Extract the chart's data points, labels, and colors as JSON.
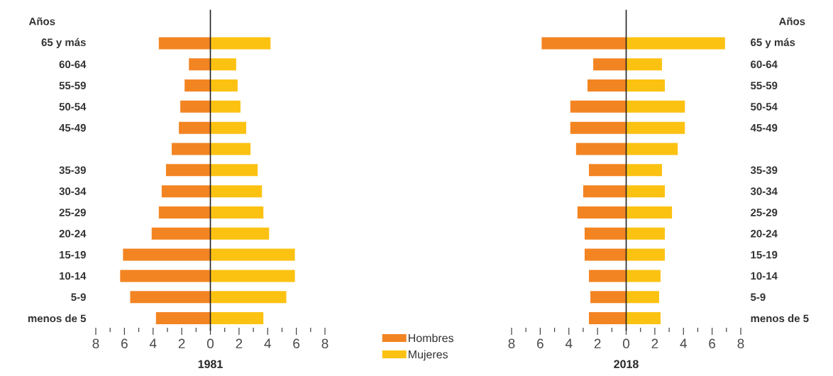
{
  "chart_data": [
    {
      "type": "bar",
      "orientation": "horizontal",
      "stacked": true,
      "title": "1981",
      "ylabel": "Años",
      "legend": "bottom right",
      "categories": [
        "65 y más",
        "60-64",
        "55-59",
        "50-54",
        "45-49",
        null,
        "35-39",
        "30-34",
        "25-29",
        "20-24",
        "15-19",
        "10-14",
        "5-9",
        "menos de 5"
      ],
      "series": [
        {
          "name": "Hombres",
          "color": "#f38422",
          "values": [
            -3.6,
            -1.5,
            -1.8,
            -2.1,
            -2.2,
            -2.7,
            -3.1,
            -3.4,
            -3.6,
            -4.1,
            -6.1,
            -6.3,
            -5.6,
            -3.8
          ]
        },
        {
          "name": "Mujeres",
          "color": "#fcc212",
          "values": [
            4.2,
            1.8,
            1.9,
            2.1,
            2.5,
            2.8,
            3.3,
            3.6,
            3.7,
            4.1,
            5.9,
            5.9,
            5.3,
            3.7
          ]
        }
      ],
      "xlim": [
        -8,
        8
      ],
      "xticks": [
        {
          "value": -8,
          "label": "8"
        },
        {
          "value": -7,
          "label": null
        },
        {
          "value": -6,
          "label": "6"
        },
        {
          "value": -5,
          "label": null
        },
        {
          "value": -4,
          "label": "4"
        },
        {
          "value": -3,
          "label": null
        },
        {
          "value": -2,
          "label": "2"
        },
        {
          "value": -1,
          "label": null
        },
        {
          "value": 0,
          "label": "0"
        },
        {
          "value": 1,
          "label": null
        },
        {
          "value": 2,
          "label": "2"
        },
        {
          "value": 3,
          "label": null
        },
        {
          "value": 4,
          "label": "4"
        },
        {
          "value": 5,
          "label": null
        },
        {
          "value": 6,
          "label": "6"
        },
        {
          "value": 7,
          "label": null
        },
        {
          "value": 8,
          "label": "8"
        }
      ],
      "ref_lines": [
        {
          "axis": "x",
          "value": 0,
          "color": "#231f20"
        }
      ]
    },
    {
      "type": "bar",
      "orientation": "horizontal",
      "stacked": true,
      "title": "2018",
      "ylabel": "Años",
      "categories": [
        "65 y más",
        "60-64",
        "55-59",
        "50-54",
        "45-49",
        null,
        "35-39",
        "30-34",
        "25-29",
        "20-24",
        "15-19",
        "10-14",
        "5-9",
        "menos de 5"
      ],
      "series": [
        {
          "color": "#f38422",
          "values": [
            -5.9,
            -2.3,
            -2.7,
            -3.9,
            -3.9,
            -3.5,
            -2.6,
            -3.0,
            -3.4,
            -2.9,
            -2.9,
            -2.6,
            -2.5,
            -2.6
          ]
        },
        {
          "color": "#fcc212",
          "values": [
            6.9,
            2.5,
            2.7,
            4.1,
            4.1,
            3.6,
            2.5,
            2.7,
            3.2,
            2.7,
            2.7,
            2.4,
            2.3,
            2.4
          ]
        }
      ],
      "xlim": [
        -8,
        8
      ],
      "xticks": [
        {
          "value": -8,
          "label": "8"
        },
        {
          "value": -7,
          "label": null
        },
        {
          "value": -6,
          "label": "6"
        },
        {
          "value": -5,
          "label": null
        },
        {
          "value": -4,
          "label": "4"
        },
        {
          "value": -3,
          "label": null
        },
        {
          "value": -2,
          "label": "2"
        },
        {
          "value": -1,
          "label": null
        },
        {
          "value": 0,
          "label": "0"
        },
        {
          "value": 1,
          "label": null
        },
        {
          "value": 2,
          "label": "2"
        },
        {
          "value": 3,
          "label": null
        },
        {
          "value": 4,
          "label": "4"
        },
        {
          "value": 5,
          "label": null
        },
        {
          "value": 6,
          "label": "6"
        },
        {
          "value": 7,
          "label": null
        },
        {
          "value": 8,
          "label": "8"
        }
      ],
      "ref_lines": [
        {
          "axis": "x",
          "value": 0,
          "color": "#231f20"
        }
      ]
    }
  ]
}
